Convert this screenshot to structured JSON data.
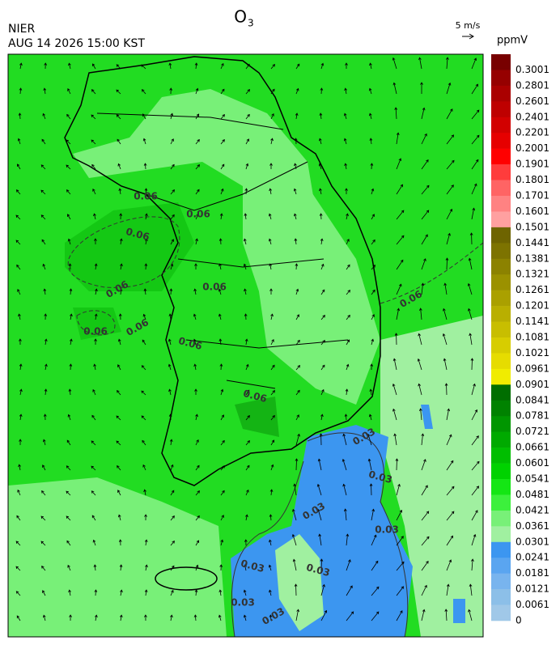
{
  "header": {
    "title": "O",
    "title_sub": "3",
    "agency": "NIER",
    "datetime": "AUG 14 2026 15:00 KST"
  },
  "wind_key": {
    "label": "5 m/s"
  },
  "colorbar": {
    "unit": "ppmV",
    "labels": [
      "0.3001",
      "0.2801",
      "0.2601",
      "0.2401",
      "0.2201",
      "0.2001",
      "0.1901",
      "0.1801",
      "0.1701",
      "0.1601",
      "0.1501",
      "0.1441",
      "0.1381",
      "0.1321",
      "0.1261",
      "0.1201",
      "0.1141",
      "0.1081",
      "0.1021",
      "0.0961",
      "0.0901",
      "0.0841",
      "0.0781",
      "0.0721",
      "0.0661",
      "0.0601",
      "0.0541",
      "0.0481",
      "0.0421",
      "0.0361",
      "0.0301",
      "0.0241",
      "0.0181",
      "0.0121",
      "0.0061",
      "0"
    ],
    "colors": [
      "#780000",
      "#960000",
      "#aa0000",
      "#be0000",
      "#d20000",
      "#e60000",
      "#ff0000",
      "#ff3c3c",
      "#ff6464",
      "#ff8282",
      "#ffa0a0",
      "#6e6400",
      "#7d7300",
      "#8c8200",
      "#9b9100",
      "#aaa000",
      "#b9af00",
      "#c8be00",
      "#d7cd00",
      "#e6dc00",
      "#f0ec00",
      "#006e00",
      "#008200",
      "#009600",
      "#00aa00",
      "#00be00",
      "#00d200",
      "#14e614",
      "#3cf03c",
      "#78f078",
      "#a0f0a0",
      "#3c96f0",
      "#5aa5f0",
      "#78b4ee",
      "#8cbfe8",
      "#a0c8e8"
    ]
  },
  "contour_labels": [
    "0.06",
    "0.06",
    "0.06",
    "0.06",
    "0.06",
    "0.06",
    "0.06",
    "0.06",
    "0.06",
    "0.06",
    "0.03",
    "0.03",
    "0.03",
    "0.03",
    "0.03",
    "0.03",
    "0.03",
    "0.03"
  ]
}
